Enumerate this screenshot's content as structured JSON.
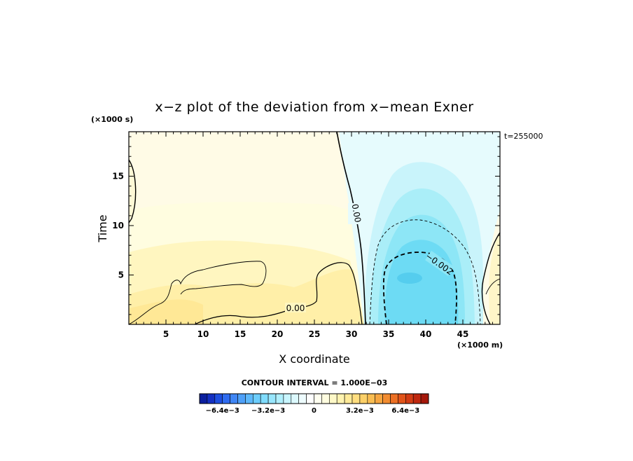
{
  "chart_data": {
    "type": "heatmap",
    "title": "x−z plot of the deviation from x−mean Exner",
    "xlabel": "X coordinate",
    "ylabel": "Time",
    "x_unit": "(×1000 m)",
    "y_unit": "(×1000 s)",
    "time_label": "t=255000",
    "xlim": [
      0,
      50
    ],
    "ylim": [
      0,
      19.5
    ],
    "x_ticks": [
      "5",
      "10",
      "15",
      "20",
      "25",
      "30",
      "35",
      "40",
      "45"
    ],
    "y_ticks": [
      "5",
      "10",
      "15"
    ],
    "contour_labels": [
      "0.00",
      "0.00",
      "−0.002"
    ],
    "contour_interval_text": "CONTOUR INTERVAL = 1.000E−03",
    "colorbar": {
      "min": -0.008,
      "max": 0.008,
      "tick_labels": [
        "−6.4e−3",
        "−3.2e−3",
        "0",
        "3.2e−3",
        "6.4e−3"
      ],
      "colors": [
        "#0b1f9e",
        "#1430c2",
        "#1e4fe0",
        "#2f6cf0",
        "#3f86f5",
        "#4ea0f8",
        "#5db8fb",
        "#6ccdfc",
        "#80dcfd",
        "#98e6fd",
        "#b0effd",
        "#c8f5fe",
        "#dcf9fe",
        "#eefcfe",
        "#ffffff",
        "#fffff0",
        "#fffde0",
        "#fff9c8",
        "#fff3b0",
        "#ffea98",
        "#ffde80",
        "#fcd068",
        "#f9bd52",
        "#f6a640",
        "#f28c30",
        "#ec7024",
        "#e1541a",
        "#d23c14",
        "#bf280f",
        "#a5180b"
      ]
    },
    "fields": {
      "positive_region_peak": 0.0012,
      "negative_region_min": -0.0028
    }
  }
}
